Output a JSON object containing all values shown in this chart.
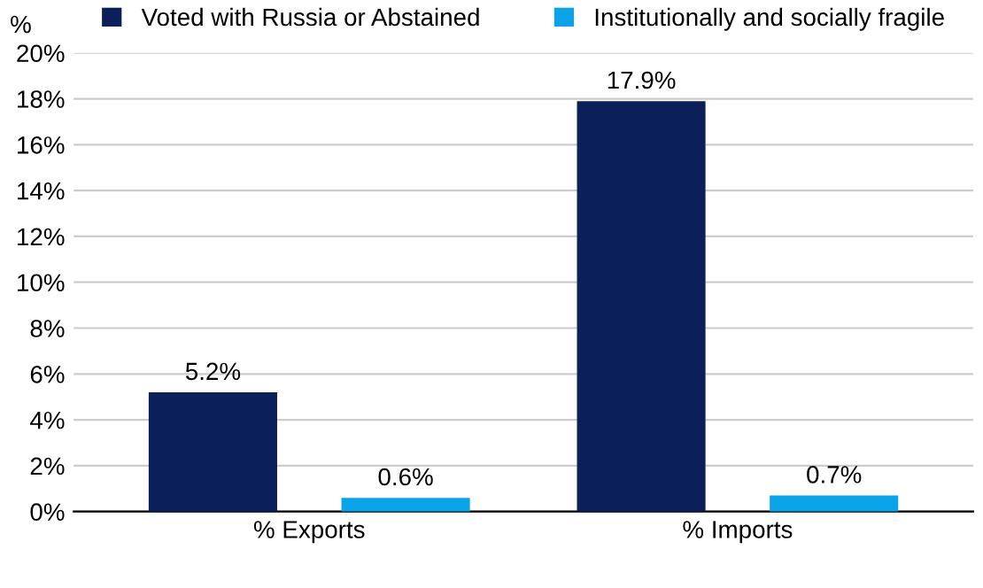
{
  "chart_data": {
    "type": "bar",
    "ylabel": "%",
    "categories": [
      "% Exports",
      "% Imports"
    ],
    "series": [
      {
        "name": "Voted with Russia or Abstained",
        "color": "#0b1f5b",
        "values": [
          5.2,
          17.9
        ],
        "value_labels": [
          "5.2%",
          "17.9%"
        ]
      },
      {
        "name": "Institutionally and socially fragile",
        "color": "#0aa3e8",
        "values": [
          0.6,
          0.7
        ],
        "value_labels": [
          "0.6%",
          "0.7%"
        ]
      }
    ],
    "ylim": [
      0,
      20
    ],
    "yticks": [
      {
        "value": 0,
        "label": "0%"
      },
      {
        "value": 2,
        "label": "2%"
      },
      {
        "value": 4,
        "label": "4%"
      },
      {
        "value": 6,
        "label": "6%"
      },
      {
        "value": 8,
        "label": "8%"
      },
      {
        "value": 10,
        "label": "10%"
      },
      {
        "value": 12,
        "label": "12%"
      },
      {
        "value": 14,
        "label": "14%"
      },
      {
        "value": 16,
        "label": "16%"
      },
      {
        "value": 18,
        "label": "18%"
      },
      {
        "value": 20,
        "label": "20%"
      }
    ],
    "grid": "y",
    "legend": "top"
  }
}
